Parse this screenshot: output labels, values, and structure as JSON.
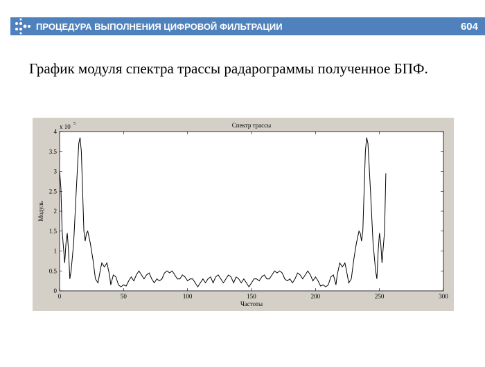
{
  "header": {
    "title": "ПРОЦЕДУРА ВЫПОЛНЕНИЯ ЦИФРОВОЙ ФИЛЬТРАЦИИ",
    "page": "604"
  },
  "text": "График модуля спектра трассы радарограммы полученное БПФ.",
  "chart_data": {
    "type": "line",
    "title": "Спектр трассы",
    "xlabel": "Частоты",
    "ylabel": "Модуль",
    "y_multiplier": "x 10",
    "y_multiplier_exp": "5",
    "color": "#000000",
    "xlim": [
      0,
      300
    ],
    "xticks": [
      0,
      50,
      100,
      150,
      200,
      250,
      300
    ],
    "ylim": [
      0,
      4
    ],
    "yticks": [
      0,
      0.5,
      1,
      1.5,
      2,
      2.5,
      3,
      3.5,
      4
    ],
    "x": [
      0,
      1,
      2,
      4,
      5,
      6,
      7,
      8,
      9,
      11,
      13,
      15,
      16,
      17,
      18,
      19,
      20,
      21,
      22,
      24,
      26,
      28,
      30,
      32,
      33,
      35,
      37,
      39,
      40,
      42,
      44,
      46,
      48,
      50,
      52,
      54,
      56,
      58,
      60,
      62,
      64,
      66,
      68,
      70,
      72,
      74,
      76,
      78,
      80,
      82,
      84,
      86,
      88,
      90,
      92,
      94,
      96,
      98,
      100,
      102,
      104,
      106,
      108,
      110,
      112,
      114,
      116,
      118,
      120,
      122,
      124,
      126,
      128,
      130,
      132,
      134,
      136,
      138,
      140,
      142,
      144,
      146,
      148,
      150,
      152,
      154,
      156,
      158,
      160,
      162,
      164,
      166,
      168,
      170,
      172,
      174,
      176,
      178,
      180,
      182,
      184,
      186,
      188,
      190,
      192,
      194,
      196,
      198,
      200,
      202,
      204,
      206,
      208,
      210,
      212,
      214,
      216,
      217,
      219,
      221,
      223,
      224,
      226,
      228,
      230,
      232,
      234,
      235,
      236,
      237,
      238,
      239,
      240,
      241,
      243,
      245,
      247,
      248,
      249,
      250,
      251,
      252,
      254,
      255
    ],
    "values": [
      3.0,
      2.6,
      1.5,
      0.7,
      1.2,
      1.45,
      1.0,
      0.3,
      0.5,
      1.2,
      2.5,
      3.7,
      3.85,
      3.5,
      2.5,
      1.5,
      1.25,
      1.45,
      1.5,
      1.2,
      0.8,
      0.3,
      0.2,
      0.55,
      0.7,
      0.6,
      0.7,
      0.4,
      0.15,
      0.4,
      0.35,
      0.15,
      0.1,
      0.15,
      0.12,
      0.25,
      0.35,
      0.25,
      0.4,
      0.5,
      0.4,
      0.3,
      0.4,
      0.45,
      0.3,
      0.2,
      0.3,
      0.25,
      0.3,
      0.45,
      0.5,
      0.45,
      0.5,
      0.4,
      0.3,
      0.3,
      0.4,
      0.35,
      0.25,
      0.3,
      0.3,
      0.2,
      0.1,
      0.2,
      0.3,
      0.2,
      0.3,
      0.35,
      0.2,
      0.35,
      0.4,
      0.3,
      0.2,
      0.3,
      0.4,
      0.35,
      0.2,
      0.35,
      0.3,
      0.2,
      0.3,
      0.2,
      0.1,
      0.2,
      0.3,
      0.3,
      0.25,
      0.35,
      0.4,
      0.3,
      0.3,
      0.4,
      0.5,
      0.45,
      0.5,
      0.45,
      0.3,
      0.25,
      0.3,
      0.2,
      0.3,
      0.45,
      0.4,
      0.3,
      0.4,
      0.5,
      0.4,
      0.25,
      0.35,
      0.25,
      0.12,
      0.15,
      0.1,
      0.15,
      0.35,
      0.4,
      0.15,
      0.4,
      0.7,
      0.6,
      0.7,
      0.55,
      0.2,
      0.3,
      0.8,
      1.2,
      1.5,
      1.45,
      1.25,
      1.5,
      2.5,
      3.5,
      3.85,
      3.7,
      2.5,
      1.2,
      0.5,
      0.3,
      1.0,
      1.45,
      1.2,
      0.7,
      1.5,
      2.95
    ]
  }
}
